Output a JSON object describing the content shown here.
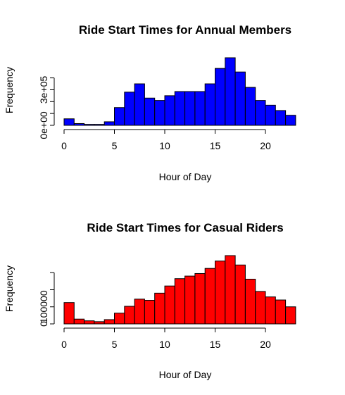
{
  "chart_data": [
    {
      "type": "bar",
      "title": "Ride Start Times for Annual Members",
      "xlabel": "Hour of Day",
      "ylabel": "Frequency",
      "color": "#0000ff",
      "bin_edges": [
        0,
        1,
        2,
        3,
        4,
        5,
        6,
        7,
        8,
        9,
        10,
        11,
        12,
        13,
        14,
        15,
        16,
        17,
        18,
        19,
        20,
        21,
        22,
        23
      ],
      "values": [
        55000,
        15000,
        8000,
        8000,
        30000,
        150000,
        280000,
        350000,
        230000,
        210000,
        250000,
        285000,
        285000,
        285000,
        350000,
        480000,
        570000,
        450000,
        320000,
        210000,
        170000,
        125000,
        85000
      ],
      "xticks": [
        0,
        5,
        10,
        15,
        20
      ],
      "xtick_labels": [
        "0",
        "5",
        "10",
        "15",
        "20"
      ],
      "yticks": [
        0,
        100000,
        200000,
        300000,
        400000
      ],
      "ytick_labels": [
        "0e+00",
        "",
        "",
        "3e+05",
        ""
      ],
      "ylim": [
        0,
        570000
      ],
      "xlim": [
        0,
        24
      ]
    },
    {
      "type": "bar",
      "title": "Ride Start Times for Casual Riders",
      "xlabel": "Hour of Day",
      "ylabel": "Frequency",
      "color": "#ff0000",
      "bin_edges": [
        0,
        1,
        2,
        3,
        4,
        5,
        6,
        7,
        8,
        9,
        10,
        11,
        12,
        13,
        14,
        15,
        16,
        17,
        18,
        19,
        20,
        21,
        22,
        23
      ],
      "values": [
        125000,
        28000,
        18000,
        13000,
        25000,
        63000,
        103000,
        145000,
        138000,
        180000,
        222000,
        265000,
        280000,
        295000,
        325000,
        368000,
        400000,
        345000,
        262000,
        190000,
        158000,
        140000,
        100000
      ],
      "xticks": [
        0,
        5,
        10,
        15,
        20
      ],
      "xtick_labels": [
        "0",
        "5",
        "10",
        "15",
        "20"
      ],
      "yticks": [
        0,
        100000,
        200000,
        300000
      ],
      "ytick_labels": [
        "0",
        "100000",
        "",
        ""
      ],
      "ylim": [
        0,
        400000
      ],
      "xlim": [
        0,
        24
      ]
    }
  ]
}
